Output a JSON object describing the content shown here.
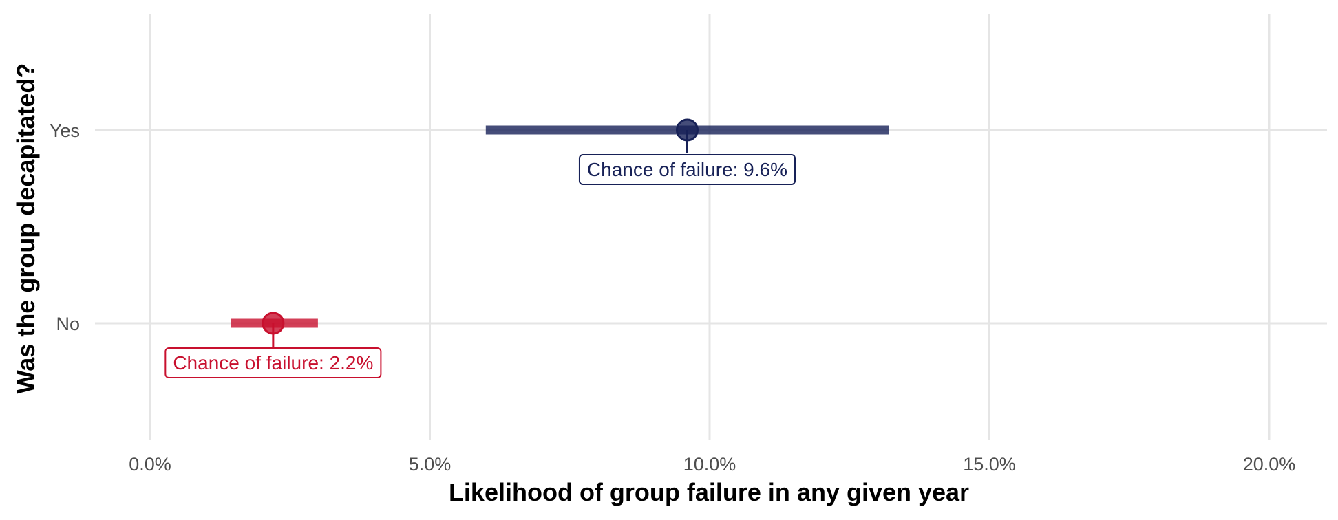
{
  "chart_data": {
    "type": "pointrange",
    "xlabel": "Likelihood of group failure in any given year",
    "ylabel": "Was the group decapitated?",
    "xlim": [
      -0.006,
      0.21
    ],
    "x_ticks": [
      0.0,
      0.05,
      0.1,
      0.15,
      0.2
    ],
    "x_tick_labels": [
      "0.0%",
      "5.0%",
      "10.0%",
      "15.0%",
      "20.0%"
    ],
    "categories": [
      "No",
      "Yes"
    ],
    "series": [
      {
        "category": "No",
        "estimate": 0.022,
        "lower": 0.0145,
        "upper": 0.03,
        "color": "#c8102e",
        "label": "Chance of failure: 2.2%"
      },
      {
        "category": "Yes",
        "estimate": 0.096,
        "lower": 0.06,
        "upper": 0.132,
        "color": "#172157",
        "label": "Chance of failure: 9.6%"
      }
    ],
    "grid": true,
    "legend": "none"
  }
}
